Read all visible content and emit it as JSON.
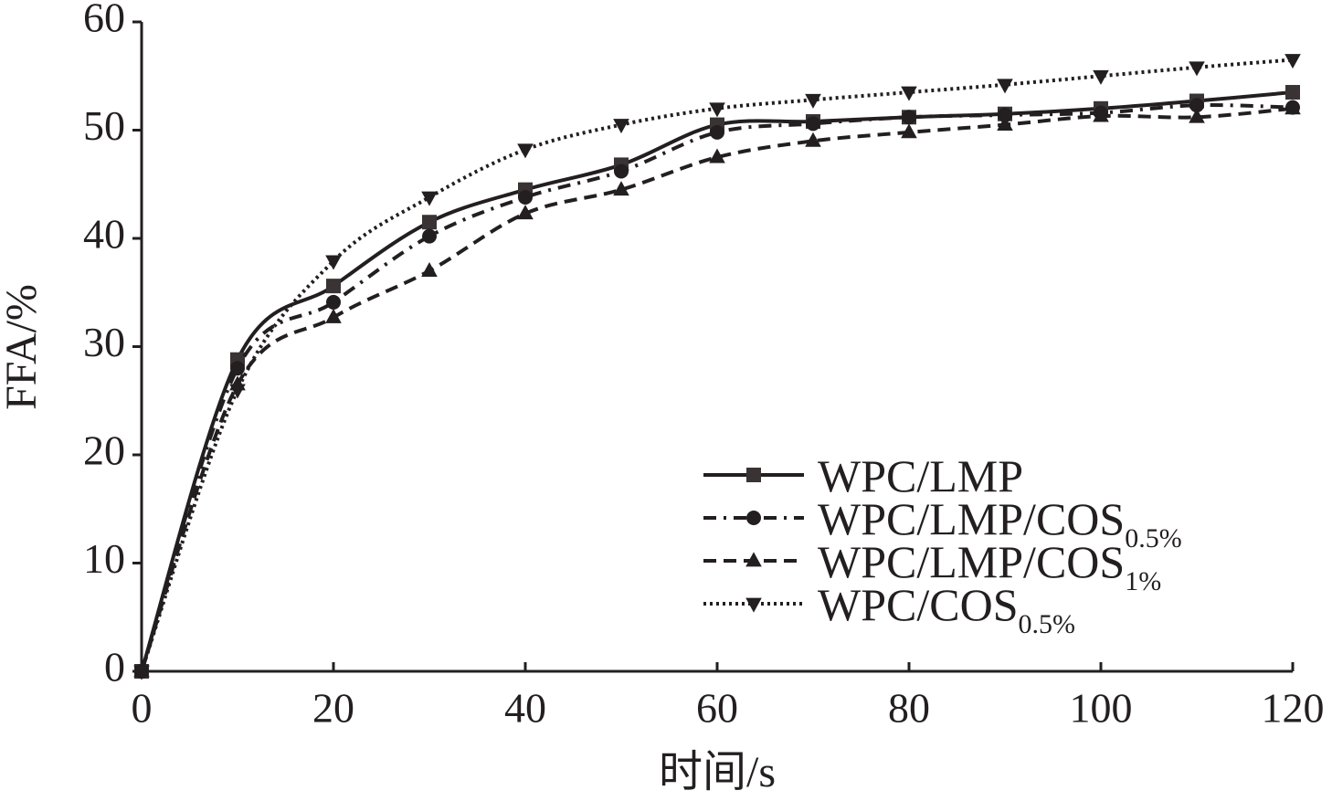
{
  "chart_data": {
    "type": "line",
    "x_label": "时间/s",
    "y_label": "FFA/%",
    "x": [
      0,
      10,
      20,
      30,
      40,
      50,
      60,
      70,
      80,
      90,
      100,
      110,
      120
    ],
    "xlim": [
      0,
      120
    ],
    "xticks": [
      0,
      20,
      40,
      60,
      80,
      100,
      120
    ],
    "ylim": [
      0,
      60
    ],
    "yticks": [
      0,
      10,
      20,
      30,
      40,
      50,
      60
    ],
    "series": [
      {
        "name": "WPC/LMP",
        "color": "#231f20",
        "marker": "square",
        "dash": "solid",
        "values": [
          0,
          28.8,
          35.6,
          41.5,
          44.5,
          46.8,
          50.5,
          50.8,
          51.2,
          51.5,
          52,
          52.7,
          53.5
        ]
      },
      {
        "name": "WPC/LMP/COS",
        "subscript": "0.5%",
        "color": "#231f20",
        "marker": "circle",
        "dash": "dashdot",
        "values": [
          0,
          28,
          34.1,
          40.2,
          43.8,
          46.2,
          49.8,
          50.6,
          51.2,
          51.4,
          51.6,
          52.3,
          52.1
        ]
      },
      {
        "name": "WPC/LMP/COS",
        "subscript": "1%",
        "color": "#231f20",
        "marker": "triangle-up",
        "dash": "dashed",
        "values": [
          0,
          26.5,
          32.7,
          37,
          42.3,
          44.5,
          47.5,
          49,
          49.8,
          50.5,
          51.3,
          51.2,
          52
        ]
      },
      {
        "name": "WPC/COS",
        "subscript": "0.5%",
        "color": "#231f20",
        "marker": "triangle-down",
        "dash": "dotted",
        "values": [
          0,
          26,
          37.9,
          43.8,
          48.2,
          50.5,
          52,
          52.8,
          53.5,
          54.2,
          55,
          55.8,
          56.5
        ]
      }
    ]
  }
}
